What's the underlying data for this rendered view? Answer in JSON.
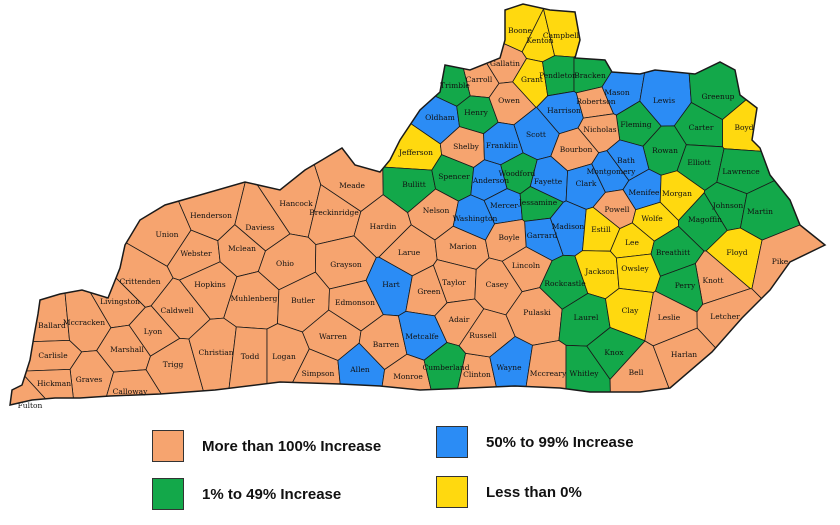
{
  "colors": {
    "orange": "#F6A46F",
    "blue": "#2B8CF5",
    "green": "#13A84A",
    "yellow": "#FFD90F",
    "border": "#1a1a1a"
  },
  "legend": [
    {
      "key": "orange",
      "label": "More than 100% Increase"
    },
    {
      "key": "green",
      "label": "1% to 49% Increase"
    },
    {
      "key": "blue",
      "label": "50% to 99% Increase"
    },
    {
      "key": "yellow",
      "label": "Less than 0%"
    }
  ],
  "counties": [
    {
      "name": "Boone",
      "cat": "yellow"
    },
    {
      "name": "Kenton",
      "cat": "yellow"
    },
    {
      "name": "Campbell",
      "cat": "yellow"
    },
    {
      "name": "Gallatin",
      "cat": "orange"
    },
    {
      "name": "Carroll",
      "cat": "orange"
    },
    {
      "name": "Trimble",
      "cat": "green"
    },
    {
      "name": "Grant",
      "cat": "yellow"
    },
    {
      "name": "Pendleton",
      "cat": "green"
    },
    {
      "name": "Bracken",
      "cat": "green"
    },
    {
      "name": "Mason",
      "cat": "blue"
    },
    {
      "name": "Lewis",
      "cat": "blue"
    },
    {
      "name": "Greenup",
      "cat": "green"
    },
    {
      "name": "Boyd",
      "cat": "yellow"
    },
    {
      "name": "Carter",
      "cat": "green"
    },
    {
      "name": "Robertson",
      "cat": "orange"
    },
    {
      "name": "Oldham",
      "cat": "blue"
    },
    {
      "name": "Henry",
      "cat": "green"
    },
    {
      "name": "Owen",
      "cat": "orange"
    },
    {
      "name": "Harrison",
      "cat": "blue"
    },
    {
      "name": "Fleming",
      "cat": "green"
    },
    {
      "name": "Scott",
      "cat": "blue"
    },
    {
      "name": "Nicholas",
      "cat": "orange"
    },
    {
      "name": "Rowan",
      "cat": "green"
    },
    {
      "name": "Elliott",
      "cat": "green"
    },
    {
      "name": "Lawrence",
      "cat": "green"
    },
    {
      "name": "Jefferson",
      "cat": "yellow"
    },
    {
      "name": "Shelby",
      "cat": "orange"
    },
    {
      "name": "Franklin",
      "cat": "blue"
    },
    {
      "name": "Bourbon",
      "cat": "orange"
    },
    {
      "name": "Bath",
      "cat": "blue"
    },
    {
      "name": "Woodford",
      "cat": "green"
    },
    {
      "name": "Fayette",
      "cat": "blue"
    },
    {
      "name": "Montgomery",
      "cat": "blue"
    },
    {
      "name": "Menifee",
      "cat": "blue"
    },
    {
      "name": "Morgan",
      "cat": "yellow"
    },
    {
      "name": "Johnson",
      "cat": "green"
    },
    {
      "name": "Martin",
      "cat": "green"
    },
    {
      "name": "Bullitt",
      "cat": "green"
    },
    {
      "name": "Spencer",
      "cat": "green"
    },
    {
      "name": "Anderson",
      "cat": "blue"
    },
    {
      "name": "Clark",
      "cat": "blue"
    },
    {
      "name": "Powell",
      "cat": "orange"
    },
    {
      "name": "Wolfe",
      "cat": "yellow"
    },
    {
      "name": "Magoffin",
      "cat": "green"
    },
    {
      "name": "Floyd",
      "cat": "yellow"
    },
    {
      "name": "Pike",
      "cat": "orange"
    },
    {
      "name": "Meade",
      "cat": "orange"
    },
    {
      "name": "Hancock",
      "cat": "orange"
    },
    {
      "name": "Breckinridge",
      "cat": "orange"
    },
    {
      "name": "Nelson",
      "cat": "orange"
    },
    {
      "name": "Washington",
      "cat": "blue"
    },
    {
      "name": "Mercer",
      "cat": "blue"
    },
    {
      "name": "Jessamine",
      "cat": "green"
    },
    {
      "name": "Garrard",
      "cat": "blue"
    },
    {
      "name": "Madison",
      "cat": "blue"
    },
    {
      "name": "Estill",
      "cat": "yellow"
    },
    {
      "name": "Lee",
      "cat": "yellow"
    },
    {
      "name": "Breathitt",
      "cat": "green"
    },
    {
      "name": "Knott",
      "cat": "orange"
    },
    {
      "name": "Henderson",
      "cat": "orange"
    },
    {
      "name": "Daviess",
      "cat": "orange"
    },
    {
      "name": "Union",
      "cat": "orange"
    },
    {
      "name": "Webster",
      "cat": "orange"
    },
    {
      "name": "Mclean",
      "cat": "orange"
    },
    {
      "name": "Hardin",
      "cat": "orange"
    },
    {
      "name": "Larue",
      "cat": "orange"
    },
    {
      "name": "Marion",
      "cat": "orange"
    },
    {
      "name": "Boyle",
      "cat": "orange"
    },
    {
      "name": "Lincoln",
      "cat": "orange"
    },
    {
      "name": "Rockcastle",
      "cat": "green"
    },
    {
      "name": "Jackson",
      "cat": "yellow"
    },
    {
      "name": "Owsley",
      "cat": "yellow"
    },
    {
      "name": "Perry",
      "cat": "green"
    },
    {
      "name": "Letcher",
      "cat": "orange"
    },
    {
      "name": "Ohio",
      "cat": "orange"
    },
    {
      "name": "Grayson",
      "cat": "orange"
    },
    {
      "name": "Crittenden",
      "cat": "orange"
    },
    {
      "name": "Livingston",
      "cat": "orange"
    },
    {
      "name": "Hopkins",
      "cat": "orange"
    },
    {
      "name": "Caldwell",
      "cat": "orange"
    },
    {
      "name": "Muhlenberg",
      "cat": "orange"
    },
    {
      "name": "Butler",
      "cat": "orange"
    },
    {
      "name": "Edmonson",
      "cat": "orange"
    },
    {
      "name": "Hart",
      "cat": "blue"
    },
    {
      "name": "Green",
      "cat": "orange"
    },
    {
      "name": "Taylor",
      "cat": "orange"
    },
    {
      "name": "Casey",
      "cat": "orange"
    },
    {
      "name": "Adair",
      "cat": "orange"
    },
    {
      "name": "Pulaski",
      "cat": "orange"
    },
    {
      "name": "Laurel",
      "cat": "green"
    },
    {
      "name": "Clay",
      "cat": "yellow"
    },
    {
      "name": "Leslie",
      "cat": "orange"
    },
    {
      "name": "Ballard",
      "cat": "orange"
    },
    {
      "name": "Mccracken",
      "cat": "orange"
    },
    {
      "name": "Marshall",
      "cat": "orange"
    },
    {
      "name": "Lyon",
      "cat": "orange"
    },
    {
      "name": "Trigg",
      "cat": "orange"
    },
    {
      "name": "Christian",
      "cat": "orange"
    },
    {
      "name": "Todd",
      "cat": "orange"
    },
    {
      "name": "Logan",
      "cat": "orange"
    },
    {
      "name": "Warren",
      "cat": "orange"
    },
    {
      "name": "Simpson",
      "cat": "orange"
    },
    {
      "name": "Allen",
      "cat": "blue"
    },
    {
      "name": "Barren",
      "cat": "orange"
    },
    {
      "name": "Metcalfe",
      "cat": "blue"
    },
    {
      "name": "Monroe",
      "cat": "orange"
    },
    {
      "name": "Cumberland",
      "cat": "green"
    },
    {
      "name": "Clinton",
      "cat": "orange"
    },
    {
      "name": "Russell",
      "cat": "orange"
    },
    {
      "name": "Wayne",
      "cat": "blue"
    },
    {
      "name": "Mccreary",
      "cat": "orange"
    },
    {
      "name": "Whitley",
      "cat": "green"
    },
    {
      "name": "Knox",
      "cat": "green"
    },
    {
      "name": "Bell",
      "cat": "orange"
    },
    {
      "name": "Harlan",
      "cat": "orange"
    },
    {
      "name": "Carlisle",
      "cat": "orange"
    },
    {
      "name": "Graves",
      "cat": "orange"
    },
    {
      "name": "Calloway",
      "cat": "orange"
    },
    {
      "name": "Hickman",
      "cat": "orange"
    },
    {
      "name": "Fulton",
      "cat": "orange"
    }
  ]
}
